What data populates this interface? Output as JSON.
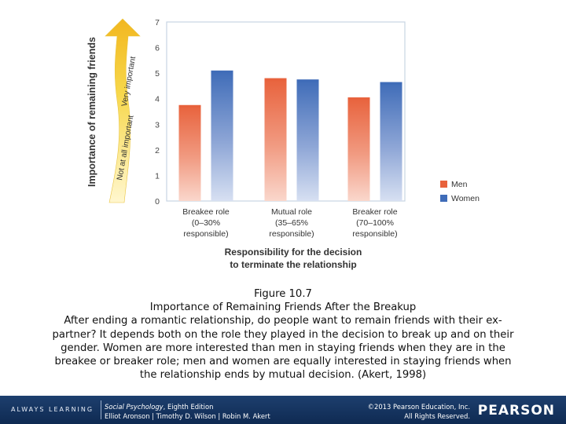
{
  "chart_data": {
    "type": "bar",
    "categories": [
      [
        "Breakee role",
        "(0–30%",
        "responsible)"
      ],
      [
        "Mutual role",
        "(35–65%",
        "responsible)"
      ],
      [
        "Breaker role",
        "(70–100%",
        "responsible)"
      ]
    ],
    "series": [
      {
        "name": "Men",
        "color": "#e8623c",
        "values": [
          3.75,
          4.8,
          4.05
        ]
      },
      {
        "name": "Women",
        "color": "#3f6cb8",
        "values": [
          5.1,
          4.75,
          4.65
        ]
      }
    ],
    "ylabel": "Importance of remaining friends",
    "arrow_low_label": "Not at all important",
    "arrow_high_label": "Very important",
    "xlabel": [
      "Responsibility for the decision",
      "to terminate the relationship"
    ],
    "ylim": [
      0,
      7
    ],
    "yticks": [
      0,
      1,
      2,
      3,
      4,
      5,
      6,
      7
    ],
    "legend_position": "right"
  },
  "caption": {
    "figure_number": "Figure 10.7",
    "figure_title": "Importance of Remaining Friends After the Breakup",
    "lines": [
      "After ending a romantic relationship, do people want to remain friends with their ex-",
      "partner? It depends both on the role they played in the decision to break up and on their",
      "gender. Women are more interested than men in staying friends when they are in the",
      "breakee or breaker role; men and women are equally interested in staying friends when",
      "the relationship ends by mutual decision. (Akert, 1998)"
    ]
  },
  "footer": {
    "tagline": "ALWAYS LEARNING",
    "book_title": "Social Psychology",
    "book_edition": ", Eighth Edition",
    "authors": "Elliot Aronson | Timothy D. Wilson | Robin M. Akert",
    "copyright": "©2013 Pearson Education, Inc.",
    "rights": "All Rights Reserved.",
    "brand": "PEARSON"
  }
}
